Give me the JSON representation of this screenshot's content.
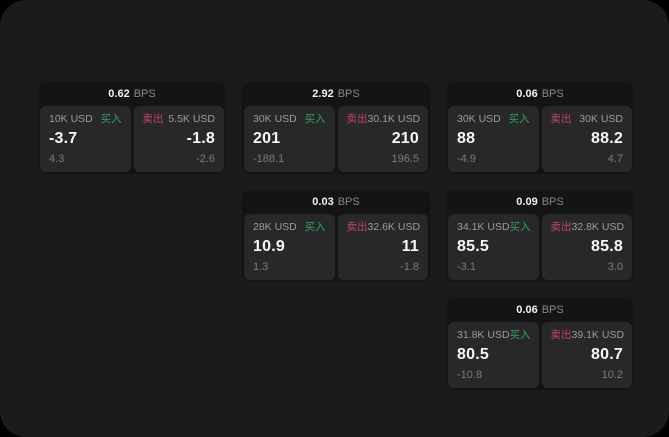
{
  "labels": {
    "bps_unit": "BPS",
    "buy": "买入",
    "sell": "卖出"
  },
  "colors": {
    "window_bg": "#1b1b1d",
    "card_bg": "#141416",
    "panel_bg": "#28282a",
    "buy_green": "#35a45f",
    "sell_red": "#c24561"
  },
  "cards": [
    {
      "bps": "0.62",
      "buy": {
        "size": "10K USD",
        "value": "-3.7",
        "sub": "4.3"
      },
      "sell": {
        "size": "5.5K USD",
        "value": "-1.8",
        "sub": "-2.6"
      }
    },
    {
      "bps": "2.92",
      "buy": {
        "size": "30K USD",
        "value": "201",
        "sub": "-188.1"
      },
      "sell": {
        "size": "30.1K USD",
        "value": "210",
        "sub": "196.5"
      }
    },
    {
      "bps": "0.06",
      "buy": {
        "size": "30K USD",
        "value": "88",
        "sub": "-4.9"
      },
      "sell": {
        "size": "30K USD",
        "value": "88.2",
        "sub": "4.7"
      }
    },
    {
      "bps": "0.03",
      "buy": {
        "size": "28K USD",
        "value": "10.9",
        "sub": "1.3"
      },
      "sell": {
        "size": "32.6K USD",
        "value": "11",
        "sub": "-1.8"
      }
    },
    {
      "bps": "0.09",
      "buy": {
        "size": "34.1K USD",
        "value": "85.5",
        "sub": "-3.1"
      },
      "sell": {
        "size": "32.8K USD",
        "value": "85.8",
        "sub": "3.0"
      }
    },
    {
      "bps": "0.06",
      "buy": {
        "size": "31.8K USD",
        "value": "80.5",
        "sub": "-10.8"
      },
      "sell": {
        "size": "39.1K USD",
        "value": "80.7",
        "sub": "10.2"
      }
    }
  ]
}
